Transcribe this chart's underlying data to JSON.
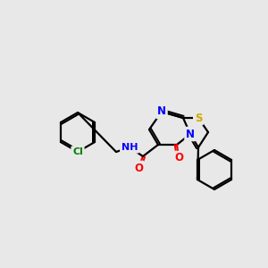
{
  "background_color": "#e8e8e8",
  "bond_color": "#000000",
  "title": "",
  "atom_colors": {
    "O": "#ff0000",
    "N": "#0000ff",
    "S": "#ccaa00",
    "Cl": "#008000",
    "C": "#000000",
    "H": "#000000"
  },
  "figsize": [
    3.0,
    3.0
  ],
  "dpi": 100
}
